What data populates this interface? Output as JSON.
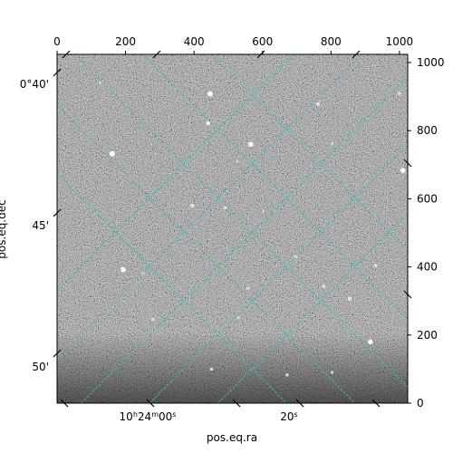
{
  "chart_data": {
    "type": "heatmap",
    "title": "",
    "xlabel": "pos.eq.ra",
    "ylabel": "pos.eq.dec",
    "pixel_axes": {
      "x_ticks": [
        0,
        200,
        400,
        600,
        800,
        1000
      ],
      "y_ticks": [
        0,
        200,
        400,
        600,
        800,
        1000
      ],
      "xlim": [
        0,
        1024
      ],
      "ylim": [
        0,
        1024
      ]
    },
    "world_axes": {
      "ra_tick_labels": [
        "10h24m00s",
        "20s"
      ],
      "dec_tick_labels": [
        "0°40'",
        "45'",
        "50'"
      ]
    },
    "grid": true,
    "grid_color": "#2ec4c4",
    "image_colormap": "gray",
    "image_description_values": {
      "background_level": "noise",
      "sources": [
        {
          "x": 161,
          "y": 732,
          "brightness": 1.0
        },
        {
          "x": 447,
          "y": 908,
          "brightness": 0.95
        },
        {
          "x": 566,
          "y": 760,
          "brightness": 0.9
        },
        {
          "x": 193,
          "y": 392,
          "brightness": 0.95
        },
        {
          "x": 915,
          "y": 180,
          "brightness": 0.9
        },
        {
          "x": 1010,
          "y": 683,
          "brightness": 0.9
        },
        {
          "x": 441,
          "y": 822,
          "brightness": 0.7
        },
        {
          "x": 762,
          "y": 878,
          "brightness": 0.6
        },
        {
          "x": 395,
          "y": 580,
          "brightness": 0.6
        },
        {
          "x": 491,
          "y": 574,
          "brightness": 0.55
        },
        {
          "x": 697,
          "y": 430,
          "brightness": 0.55
        },
        {
          "x": 854,
          "y": 307,
          "brightness": 0.6
        },
        {
          "x": 779,
          "y": 343,
          "brightness": 0.5
        },
        {
          "x": 930,
          "y": 404,
          "brightness": 0.5
        },
        {
          "x": 558,
          "y": 337,
          "brightness": 0.45
        },
        {
          "x": 251,
          "y": 382,
          "brightness": 0.5
        },
        {
          "x": 280,
          "y": 246,
          "brightness": 0.45
        },
        {
          "x": 672,
          "y": 83,
          "brightness": 0.45
        },
        {
          "x": 451,
          "y": 100,
          "brightness": 0.45
        },
        {
          "x": 803,
          "y": 90,
          "brightness": 0.4
        },
        {
          "x": 529,
          "y": 251,
          "brightness": 0.4
        },
        {
          "x": 803,
          "y": 762,
          "brightness": 0.4
        },
        {
          "x": 1000,
          "y": 909,
          "brightness": 0.5
        },
        {
          "x": 125,
          "y": 940,
          "brightness": 0.4
        },
        {
          "x": 526,
          "y": 710,
          "brightness": 0.35
        },
        {
          "x": 603,
          "y": 564,
          "brightness": 0.35
        }
      ]
    }
  }
}
